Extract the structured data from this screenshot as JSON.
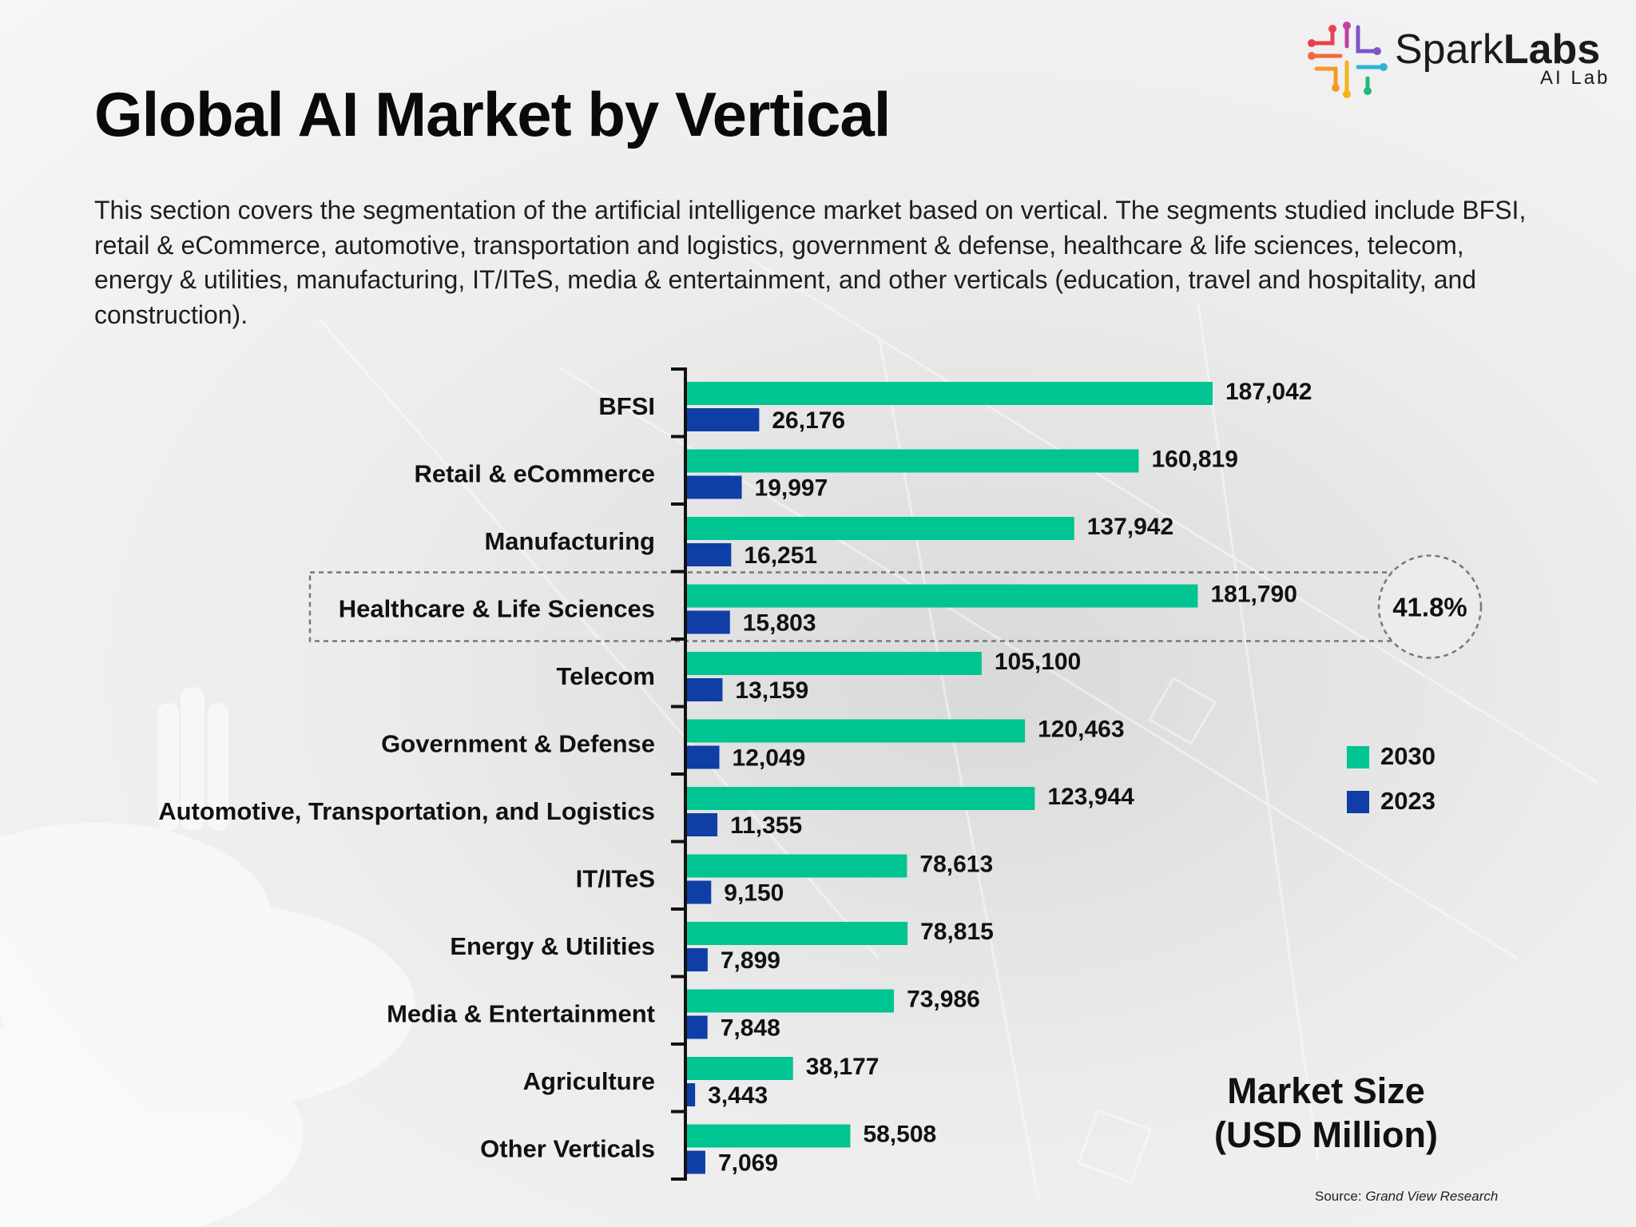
{
  "logo": {
    "name_regular": "Spark",
    "name_bold": "Labs",
    "subtitle": "AI Lab"
  },
  "title": "Global AI Market by Vertical",
  "description": "This section covers the segmentation of the artificial intelligence market based on vertical. The segments studied include BFSI, retail & eCommerce, automotive, transportation and logistics, government & defense, healthcare & life sciences, telecom, energy & utilities, manufacturing, IT/ITeS, media & entertainment, and other verticals (education, travel and hospitality, and construction).",
  "highlight": {
    "category": "Healthcare & Life Sciences",
    "label": "41.8%"
  },
  "market_size": {
    "line1": "Market Size",
    "line2": "(USD Million)"
  },
  "source": {
    "prefix": "Source:",
    "name": "Grand View Research"
  },
  "colors": {
    "series_2030": "#00c491",
    "series_2023": "#0e3ea6",
    "axis": "#111111"
  },
  "chart_data": {
    "type": "bar",
    "orientation": "horizontal",
    "categories": [
      "BFSI",
      "Retail & eCommerce",
      "Manufacturing",
      "Healthcare & Life Sciences",
      "Telecom",
      "Government & Defense",
      "Automotive, Transportation, and Logistics",
      "IT/ITeS",
      "Energy & Utilities",
      "Media & Entertainment",
      "Agriculture",
      "Other Verticals"
    ],
    "series": [
      {
        "name": "2030",
        "values": [
          187042,
          160819,
          137942,
          181790,
          105100,
          120463,
          123944,
          78613,
          78815,
          73986,
          38177,
          58508
        ]
      },
      {
        "name": "2023",
        "values": [
          26176,
          19997,
          16251,
          15803,
          13159,
          12049,
          11355,
          9150,
          7899,
          7848,
          3443,
          7069
        ]
      }
    ],
    "data_labels": {
      "2030": [
        "187,042",
        "160,819",
        "137,942",
        "181,790",
        "105,100",
        "120,463",
        "123,944",
        "78,613",
        "78,815",
        "73,986",
        "38,177",
        "58,508"
      ],
      "2023": [
        "26,176",
        "19,997",
        "16,251",
        "15,803",
        "13,159",
        "12,049",
        "11,355",
        "9,150",
        "7,899",
        "7,848",
        "3,443",
        "7,069"
      ]
    },
    "legend": [
      "2030",
      "2023"
    ],
    "legend_position": "right",
    "grid": false,
    "xlim": [
      0,
      187042
    ]
  }
}
